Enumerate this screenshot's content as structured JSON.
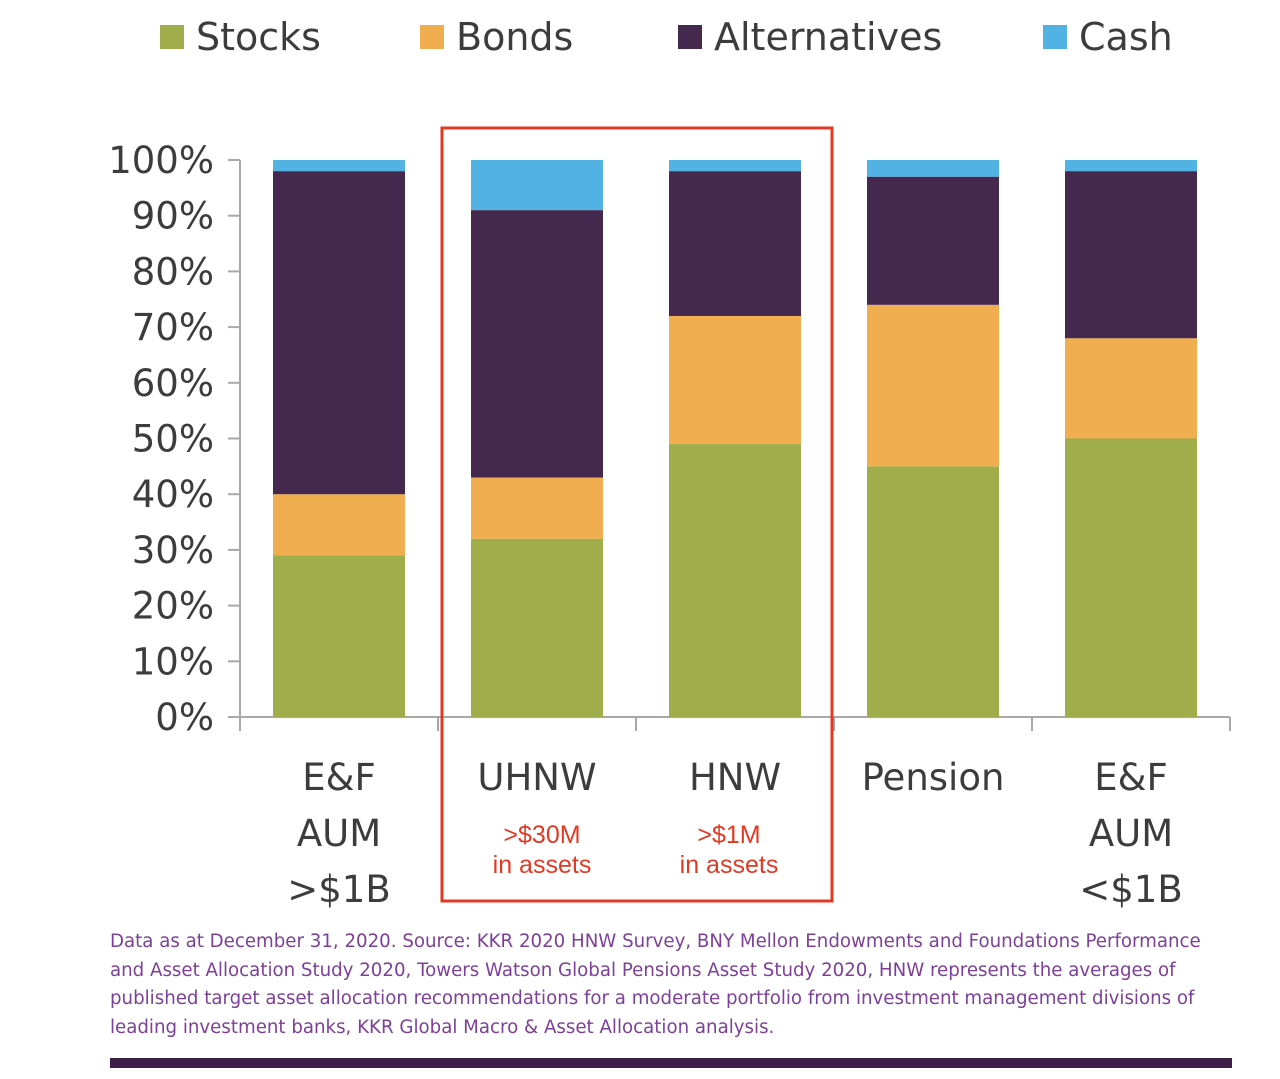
{
  "chart_data": {
    "type": "bar",
    "stacked": true,
    "categories": [
      [
        "E&F",
        "AUM",
        ">$1B"
      ],
      [
        "UHNW"
      ],
      [
        "HNW"
      ],
      [
        "Pension"
      ],
      [
        "E&F",
        "AUM",
        "<$1B"
      ]
    ],
    "series": [
      {
        "name": "Stocks",
        "color": "#9fae4a",
        "values": [
          29,
          32,
          49,
          45,
          50
        ]
      },
      {
        "name": "Bonds",
        "color": "#f0ae50",
        "values": [
          11,
          11,
          23,
          29,
          18
        ]
      },
      {
        "name": "Alternatives",
        "color": "#45284e",
        "values": [
          58,
          48,
          26,
          23,
          30
        ]
      },
      {
        "name": "Cash",
        "color": "#52b2e3",
        "values": [
          2,
          9,
          2,
          3,
          2
        ]
      }
    ],
    "ylim": [
      0,
      100
    ],
    "yticks": [
      "0%",
      "10%",
      "20%",
      "30%",
      "40%",
      "50%",
      "60%",
      "70%",
      "80%",
      "90%",
      "100%"
    ],
    "legend_position": "top",
    "grid": false,
    "highlight": {
      "categories": [
        "UHNW",
        "HNW"
      ],
      "color": "#e03a24",
      "annotations": [
        {
          "category": "UHNW",
          "lines": [
            ">$30M",
            "in assets"
          ]
        },
        {
          "category": "HNW",
          "lines": [
            ">$1M",
            "in assets"
          ]
        }
      ]
    }
  },
  "footnote": "Data as at December 31, 2020. Source: KKR 2020 HNW Survey, BNY Mellon Endowments and Foundations Performance and Asset Allocation Study 2020, Towers Watson Global Pensions Asset Study 2020, HNW represents the averages of published target asset allocation recommendations for a moderate portfolio from investment management divisions of leading investment banks, KKR Global Macro & Asset Allocation analysis."
}
